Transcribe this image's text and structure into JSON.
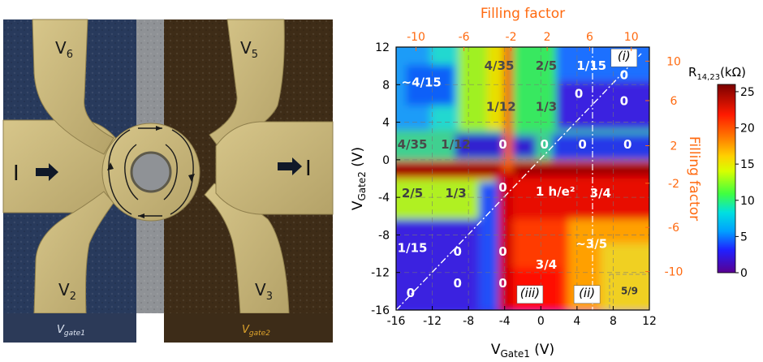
{
  "device": {
    "contacts": [
      "V6",
      "V5",
      "V2",
      "V3"
    ],
    "current_label": "I",
    "gate_labels": [
      "V",
      "gate1",
      "gate2"
    ],
    "colors": {
      "gate1": "#2c3a58",
      "gate2": "#3d2c18",
      "metal": "#c8b77c",
      "label_gate2": "#e0a52c"
    }
  },
  "chart_data": {
    "type": "heatmap",
    "xlabel": [
      "V",
      "Gate1",
      " (V)"
    ],
    "ylabel": [
      "V",
      "Gate2",
      " (V)"
    ],
    "xlim": [
      -16,
      12
    ],
    "ylim": [
      -16,
      12
    ],
    "x_ticks": [
      -16,
      -12,
      -8,
      -4,
      0,
      4,
      8,
      12
    ],
    "y_ticks": [
      -16,
      -12,
      -8,
      -4,
      0,
      4,
      8,
      12
    ],
    "top_axis": {
      "label": "Filling factor",
      "ticks": [
        -10,
        -6,
        -2,
        2,
        6,
        10
      ],
      "tick_x": [
        -13.8,
        -8.5,
        -3.3,
        0.7,
        5.4,
        10.0
      ]
    },
    "right_axis": {
      "label": "Filling factor",
      "ticks": [
        10,
        6,
        2,
        -2,
        -6,
        -10
      ],
      "tick_y": [
        10.5,
        6.3,
        1.5,
        -2.5,
        -7.2,
        -11.9
      ]
    },
    "colorbar": {
      "label": [
        "R",
        "14,23",
        "(kΩ)"
      ],
      "ticks": [
        0,
        5,
        10,
        15,
        20,
        25
      ],
      "range": [
        0,
        26
      ]
    },
    "annotations": [
      {
        "text": "(i)",
        "x": 9.2,
        "y": 10.6
      },
      {
        "text": "(ii)",
        "x": 5.1,
        "y": -14.6
      },
      {
        "text": "(iii)",
        "x": -1.2,
        "y": -14.6
      },
      {
        "text": "~4/15",
        "x": -13.2,
        "y": 7.8
      },
      {
        "text": "4/35",
        "x": -4.6,
        "y": 9.6
      },
      {
        "text": "2/5",
        "x": 0.6,
        "y": 9.6
      },
      {
        "text": "1/15",
        "x": 5.6,
        "y": 9.6
      },
      {
        "text": "1/12",
        "x": -4.4,
        "y": 5.2
      },
      {
        "text": "1/3",
        "x": 0.6,
        "y": 5.2
      },
      {
        "text": "4/35",
        "x": -14.2,
        "y": 1.2
      },
      {
        "text": "1/12",
        "x": -9.4,
        "y": 1.2
      },
      {
        "text": "2/5",
        "x": -14.2,
        "y": -4.0
      },
      {
        "text": "1/3",
        "x": -9.4,
        "y": -4.0
      },
      {
        "text": "1 h/e²",
        "x": 1.6,
        "y": -3.8
      },
      {
        "text": "3/4",
        "x": 6.6,
        "y": -4.0
      },
      {
        "text": "1/15",
        "x": -14.2,
        "y": -9.8
      },
      {
        "text": "~3/5",
        "x": 5.6,
        "y": -9.4
      },
      {
        "text": "3/4",
        "x": 0.6,
        "y": -11.6
      },
      {
        "text": "5/9",
        "x": 9.8,
        "y": -14.3
      },
      {
        "text": "0",
        "x": 4.2,
        "y": 6.6
      },
      {
        "text": "0",
        "x": 9.2,
        "y": 8.6
      },
      {
        "text": "0",
        "x": 9.2,
        "y": 5.8
      },
      {
        "text": "0",
        "x": -4.2,
        "y": 1.2
      },
      {
        "text": "0",
        "x": 0.4,
        "y": 1.2
      },
      {
        "text": "0",
        "x": 4.6,
        "y": 1.2
      },
      {
        "text": "0",
        "x": 9.6,
        "y": 1.2
      },
      {
        "text": "0",
        "x": -4.2,
        "y": -3.4
      },
      {
        "text": "0",
        "x": -9.2,
        "y": -10.2
      },
      {
        "text": "0",
        "x": -4.2,
        "y": -10.2
      },
      {
        "text": "0",
        "x": -14.4,
        "y": -14.6
      },
      {
        "text": "0",
        "x": -9.2,
        "y": -13.6
      },
      {
        "text": "0",
        "x": -4.2,
        "y": -13.6
      }
    ],
    "label_colors": {
      "orange": "#ff6a10",
      "white": "#ffffff",
      "gray": "#4a4a4a"
    }
  }
}
